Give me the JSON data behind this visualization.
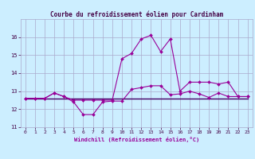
{
  "title": "Courbe du refroidissement éolien pour Cardinham",
  "xlabel": "Windchill (Refroidissement éolien,°C)",
  "background_color": "#cceeff",
  "grid_color": "#aaaacc",
  "line_color": "#990099",
  "flat_color": "#440066",
  "xlim": [
    -0.5,
    23.5
  ],
  "ylim": [
    11,
    17
  ],
  "yticks": [
    11,
    12,
    13,
    14,
    15,
    16
  ],
  "xticks": [
    0,
    1,
    2,
    3,
    4,
    5,
    6,
    7,
    8,
    9,
    10,
    11,
    12,
    13,
    14,
    15,
    16,
    17,
    18,
    19,
    20,
    21,
    22,
    23
  ],
  "hours": [
    0,
    1,
    2,
    3,
    4,
    5,
    6,
    7,
    8,
    9,
    10,
    11,
    12,
    13,
    14,
    15,
    16,
    17,
    18,
    19,
    20,
    21,
    22,
    23
  ],
  "flat_line": [
    12.6,
    12.6,
    12.6,
    12.6,
    12.6,
    12.6,
    12.6,
    12.6,
    12.6,
    12.6,
    12.6,
    12.6,
    12.6,
    12.6,
    12.6,
    12.6,
    12.6,
    12.6,
    12.6,
    12.6,
    12.6,
    12.6,
    12.6,
    12.6
  ],
  "windchill": [
    12.6,
    12.6,
    12.6,
    12.9,
    12.7,
    12.4,
    11.7,
    11.7,
    12.4,
    12.45,
    12.45,
    13.1,
    13.2,
    13.3,
    13.3,
    12.8,
    12.85,
    13.0,
    12.85,
    12.65,
    12.9,
    12.7,
    12.7,
    12.7
  ],
  "actual_temp": [
    12.6,
    12.6,
    12.6,
    12.9,
    12.7,
    12.5,
    12.5,
    12.5,
    12.5,
    12.5,
    14.8,
    15.1,
    15.9,
    16.1,
    15.2,
    15.9,
    13.0,
    13.5,
    13.5,
    13.5,
    13.4,
    13.5,
    12.7,
    12.7
  ]
}
